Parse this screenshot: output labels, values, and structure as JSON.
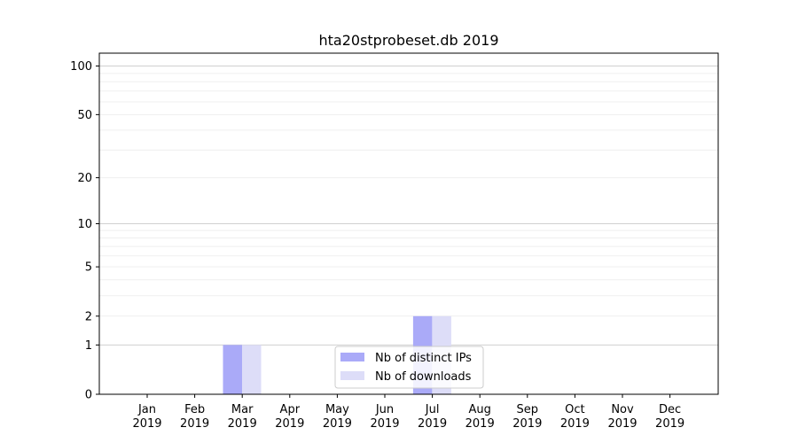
{
  "chart_data": {
    "type": "bar",
    "title": "hta20stprobeset.db 2019",
    "xlabel": "",
    "ylabel": "",
    "yscale": "symlog",
    "ylim": [
      0,
      120
    ],
    "yticks": [
      0,
      1,
      2,
      5,
      10,
      20,
      50,
      100
    ],
    "grid": true,
    "legend_position": "bottom-center",
    "categories": [
      {
        "month": "Jan",
        "year": "2019"
      },
      {
        "month": "Feb",
        "year": "2019"
      },
      {
        "month": "Mar",
        "year": "2019"
      },
      {
        "month": "Apr",
        "year": "2019"
      },
      {
        "month": "May",
        "year": "2019"
      },
      {
        "month": "Jun",
        "year": "2019"
      },
      {
        "month": "Jul",
        "year": "2019"
      },
      {
        "month": "Aug",
        "year": "2019"
      },
      {
        "month": "Sep",
        "year": "2019"
      },
      {
        "month": "Oct",
        "year": "2019"
      },
      {
        "month": "Nov",
        "year": "2019"
      },
      {
        "month": "Dec",
        "year": "2019"
      }
    ],
    "series": [
      {
        "name": "Nb of distinct IPs",
        "color": "#aaaaf8",
        "values": [
          0,
          0,
          1,
          0,
          0,
          0,
          2,
          0,
          0,
          0,
          0,
          0
        ]
      },
      {
        "name": "Nb of downloads",
        "color": "#ddddf8",
        "values": [
          0,
          0,
          1,
          0,
          0,
          0,
          2,
          0,
          0,
          0,
          0,
          0
        ]
      }
    ]
  }
}
